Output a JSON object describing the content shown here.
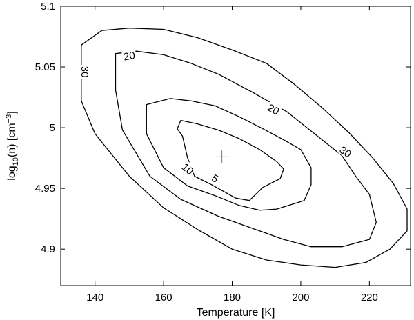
{
  "chart_data": {
    "type": "contour",
    "title": "",
    "xlabel": "Temperature [K]",
    "ylabel": {
      "base": "log",
      "sub": "10",
      "mid": "(n) [cm",
      "sup": "−3",
      "end": "]"
    },
    "xlim": [
      130,
      232
    ],
    "ylim": [
      4.87,
      5.1
    ],
    "xticks": [
      140,
      160,
      180,
      200,
      220
    ],
    "yticks": [
      4.9,
      4.95,
      5.0,
      5.05,
      5.1
    ],
    "ytick_labels": [
      "4.9",
      "4.95",
      "5",
      "5.05",
      "5.1"
    ],
    "grid": false,
    "best_fit": {
      "x": 177,
      "y": 4.976
    },
    "contours": [
      {
        "level": "5",
        "label": {
          "x": 175,
          "y": 4.958,
          "angle": 32
        },
        "points": [
          [
            165.5,
            4.993
          ],
          [
            164,
            4.999
          ],
          [
            165,
            5.006
          ],
          [
            170,
            5.003
          ],
          [
            176,
            4.998
          ],
          [
            182,
            4.991
          ],
          [
            188,
            4.982
          ],
          [
            193,
            4.972
          ],
          [
            195,
            4.966
          ],
          [
            194,
            4.958
          ],
          [
            189,
            4.951
          ],
          [
            185,
            4.94
          ],
          [
            181,
            4.942
          ],
          [
            174,
            4.953
          ],
          [
            169,
            4.96
          ],
          [
            167,
            4.975
          ],
          [
            165.5,
            4.993
          ]
        ]
      },
      {
        "level": "10",
        "label": {
          "x": 167,
          "y": 4.966,
          "angle": 40
        },
        "points": [
          [
            155,
            4.995
          ],
          [
            155,
            5.019
          ],
          [
            162,
            5.024
          ],
          [
            168,
            5.022
          ],
          [
            175,
            5.018
          ],
          [
            182,
            5.009
          ],
          [
            189,
            4.999
          ],
          [
            195,
            4.99
          ],
          [
            200,
            4.982
          ],
          [
            203,
            4.967
          ],
          [
            203,
            4.953
          ],
          [
            201,
            4.94
          ],
          [
            193,
            4.933
          ],
          [
            188,
            4.932
          ],
          [
            182,
            4.936
          ],
          [
            175,
            4.944
          ],
          [
            167,
            4.952
          ],
          [
            160,
            4.967
          ],
          [
            155,
            4.995
          ]
        ]
      },
      {
        "level": "20",
        "label_positions": [
          {
            "x": 150,
            "y": 5.059,
            "angle": -10
          },
          {
            "x": 192,
            "y": 5.015,
            "angle": 28
          }
        ],
        "points": [
          [
            146,
            5.031
          ],
          [
            146,
            5.061
          ],
          [
            152,
            5.063
          ],
          [
            160,
            5.06
          ],
          [
            168,
            5.053
          ],
          [
            176,
            5.044
          ],
          [
            186,
            5.029
          ],
          [
            196,
            5.013
          ],
          [
            204,
            4.995
          ],
          [
            212,
            4.977
          ],
          [
            216,
            4.96
          ],
          [
            220,
            4.945
          ],
          [
            222,
            4.922
          ],
          [
            220,
            4.908
          ],
          [
            212,
            4.902
          ],
          [
            203,
            4.902
          ],
          [
            195,
            4.908
          ],
          [
            185,
            4.918
          ],
          [
            176,
            4.927
          ],
          [
            165,
            4.941
          ],
          [
            156,
            4.96
          ],
          [
            148,
            4.998
          ],
          [
            146,
            5.031
          ]
        ]
      },
      {
        "level": "30",
        "label_positions": [
          {
            "x": 137,
            "y": 5.046,
            "angle": 90
          },
          {
            "x": 213,
            "y": 4.98,
            "angle": 35
          }
        ],
        "points": [
          [
            136,
            5.022
          ],
          [
            136,
            5.068
          ],
          [
            142,
            5.08
          ],
          [
            150,
            5.082
          ],
          [
            160,
            5.081
          ],
          [
            170,
            5.074
          ],
          [
            180,
            5.064
          ],
          [
            190,
            5.053
          ],
          [
            198,
            5.036
          ],
          [
            206,
            5.017
          ],
          [
            214,
            4.996
          ],
          [
            221,
            4.975
          ],
          [
            227,
            4.954
          ],
          [
            231,
            4.933
          ],
          [
            231,
            4.915
          ],
          [
            226,
            4.9
          ],
          [
            219,
            4.889
          ],
          [
            210,
            4.885
          ],
          [
            200,
            4.887
          ],
          [
            190,
            4.891
          ],
          [
            180,
            4.9
          ],
          [
            170,
            4.916
          ],
          [
            160,
            4.934
          ],
          [
            150,
            4.96
          ],
          [
            140,
            4.995
          ],
          [
            136,
            5.022
          ]
        ]
      }
    ]
  }
}
